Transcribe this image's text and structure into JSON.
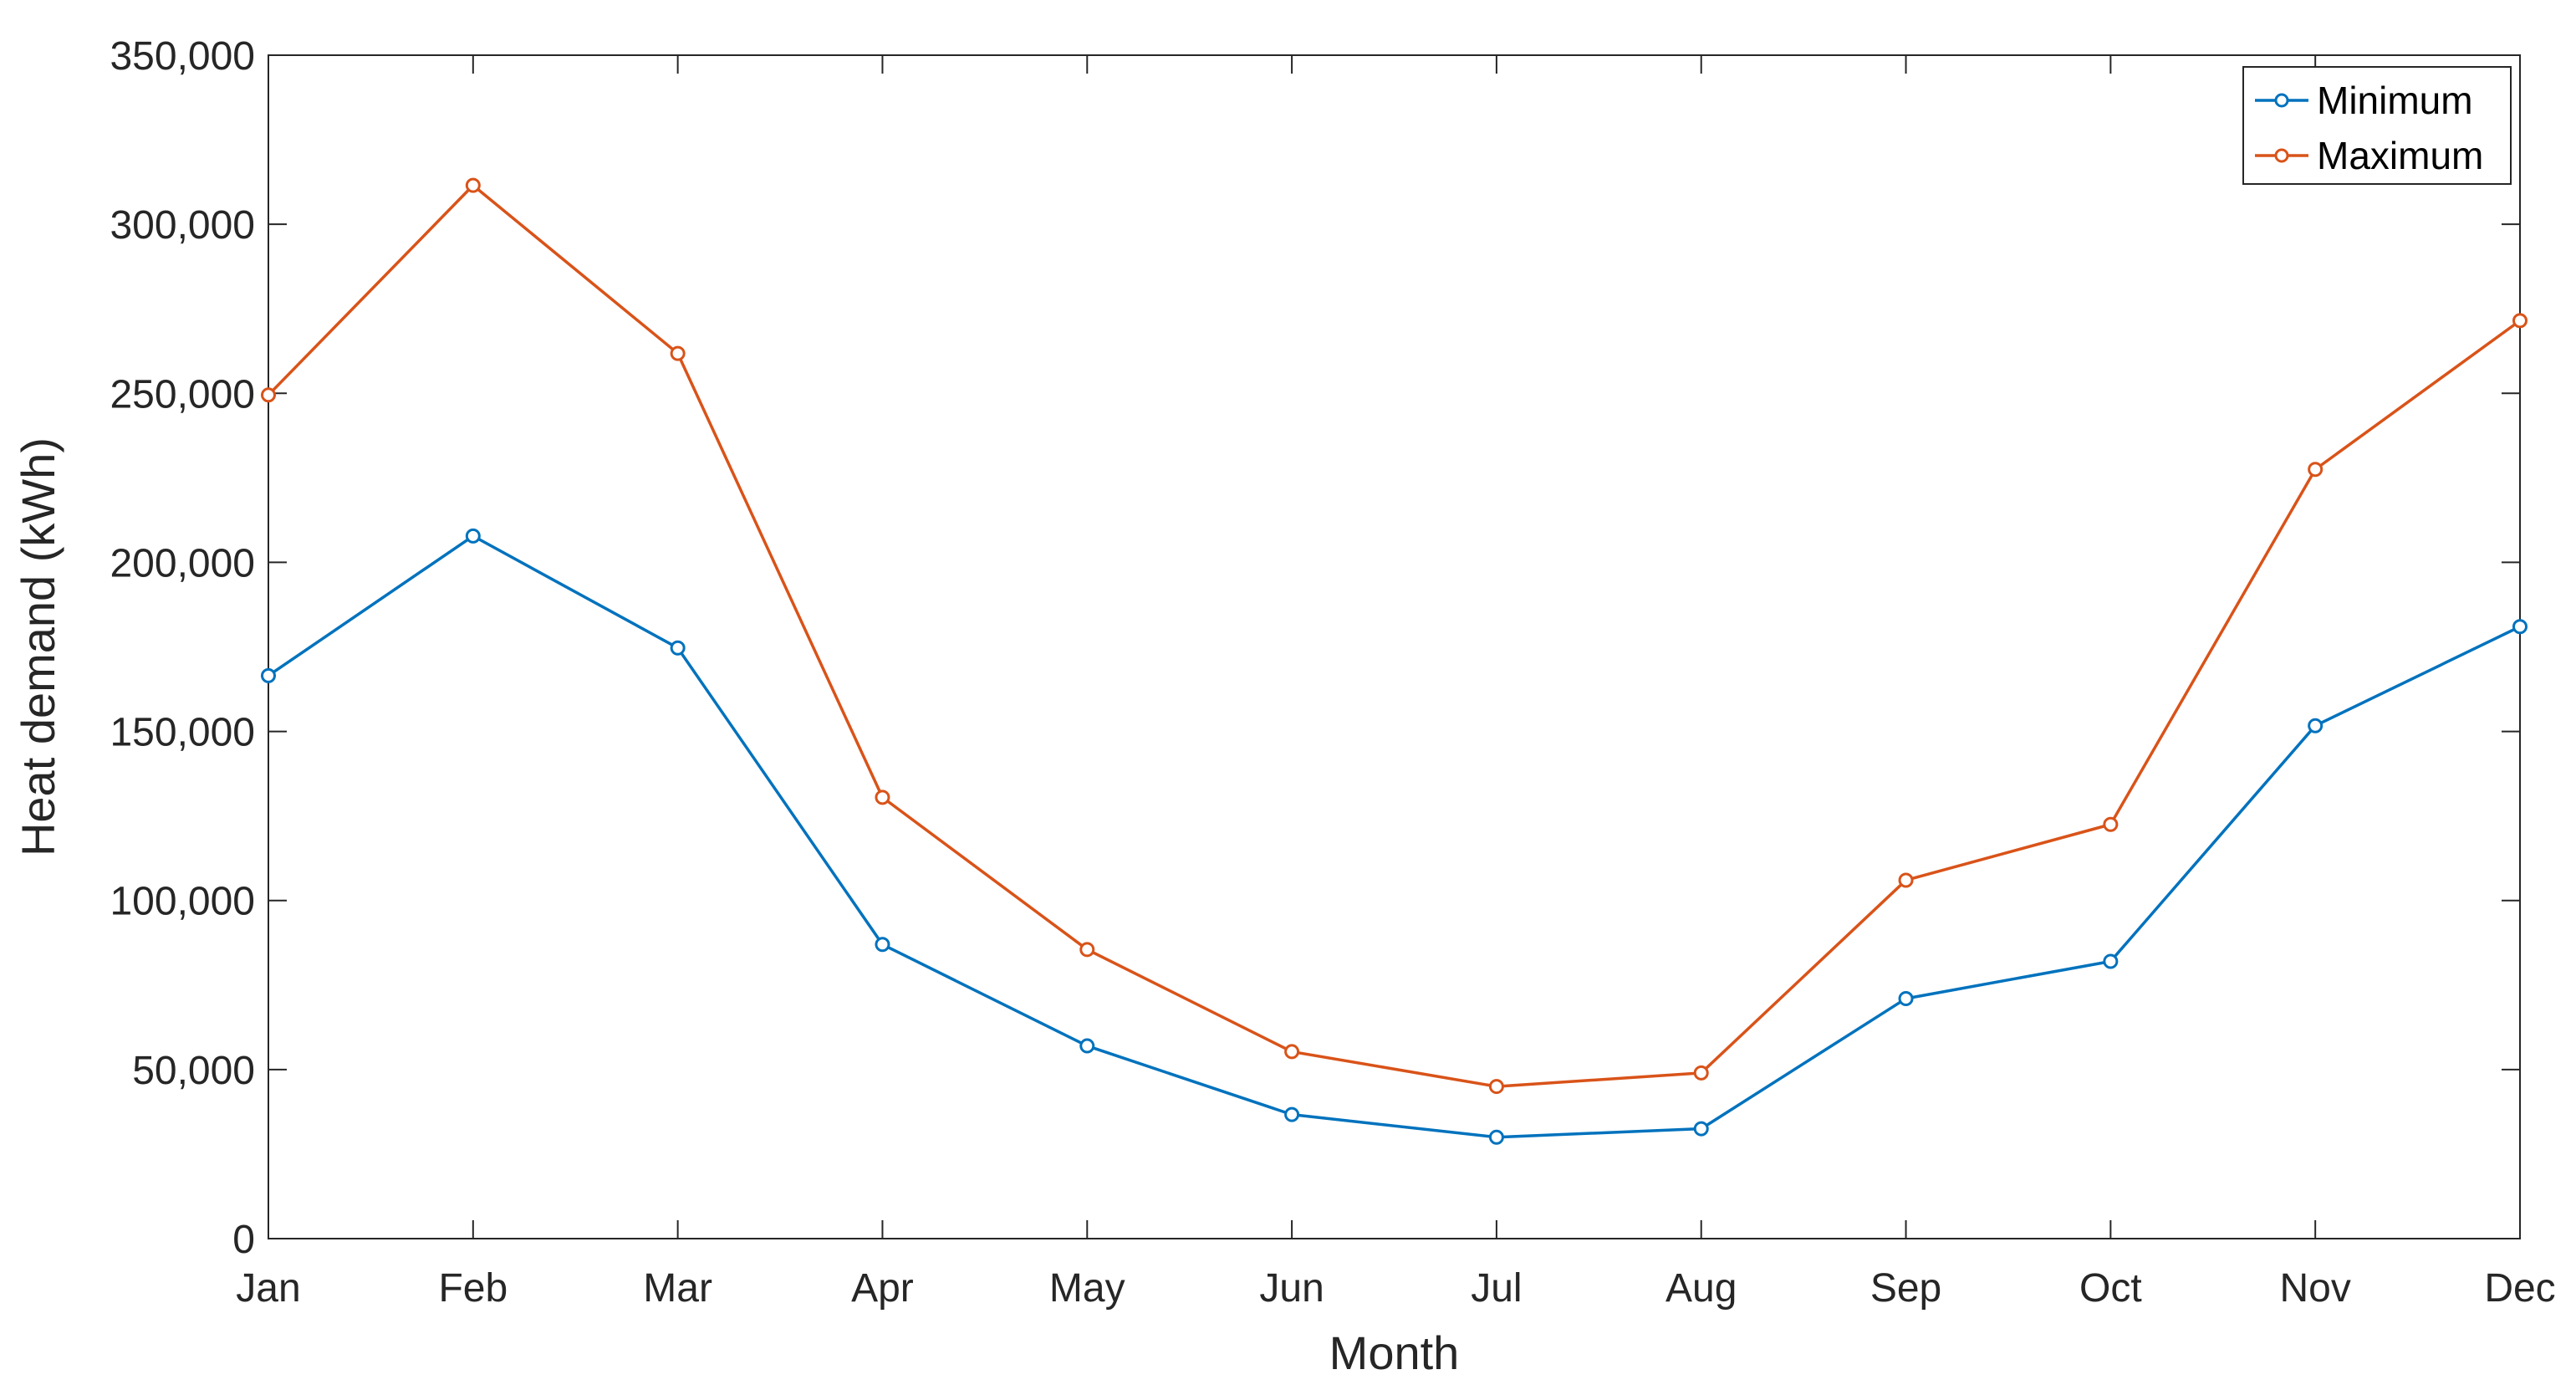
{
  "chart_data": {
    "type": "line",
    "categories": [
      "Jan",
      "Feb",
      "Mar",
      "Apr",
      "May",
      "Jun",
      "Jul",
      "Aug",
      "Sep",
      "Oct",
      "Nov",
      "Dec"
    ],
    "series": [
      {
        "name": "Minimum",
        "values": [
          166500,
          207800,
          174700,
          87000,
          57000,
          36700,
          30000,
          32500,
          71000,
          82000,
          151700,
          181000
        ],
        "color": "#0072BD"
      },
      {
        "name": "Maximum",
        "values": [
          249500,
          311500,
          261800,
          130500,
          85500,
          55300,
          45000,
          49000,
          106000,
          122500,
          227500,
          271500
        ],
        "color": "#D95319"
      }
    ],
    "xlabel": "Month",
    "ylabel": "Heat demand (kWh)",
    "ylim": [
      0,
      350000
    ],
    "yticks": [
      0,
      50000,
      100000,
      150000,
      200000,
      250000,
      300000,
      350000
    ],
    "ytick_labels": [
      "0",
      "50,000",
      "100,000",
      "150,000",
      "200,000",
      "250,000",
      "300,000",
      "350,000"
    ],
    "grid": false,
    "legend_position": "top-right",
    "marker": "circle"
  }
}
